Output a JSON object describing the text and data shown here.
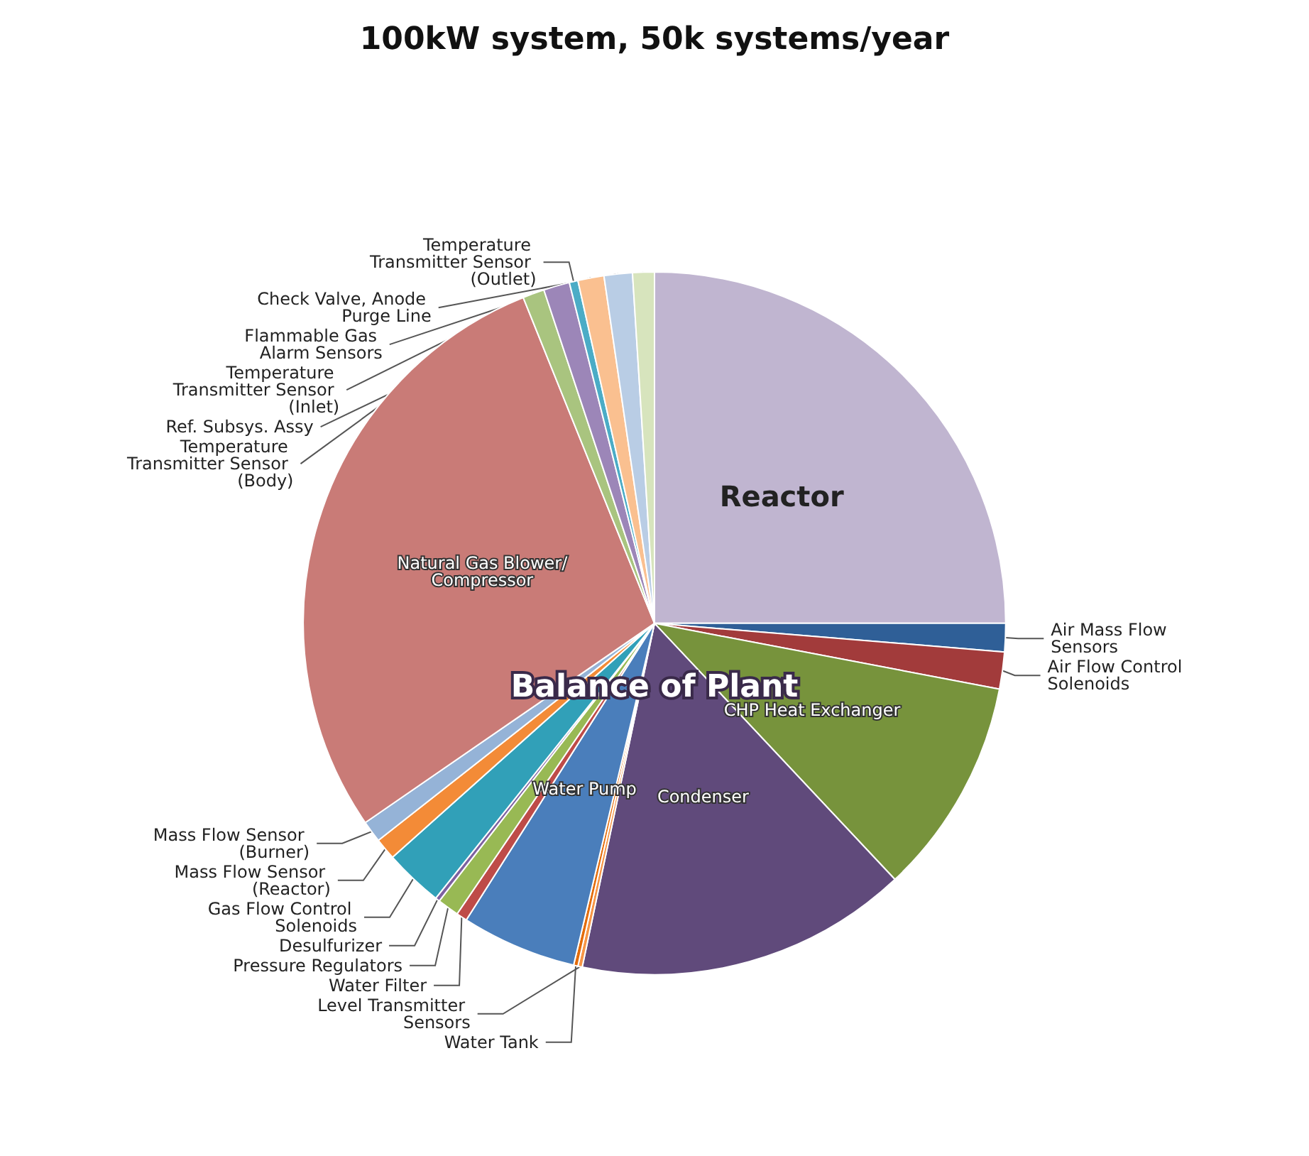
{
  "chart_data": {
    "type": "pie",
    "title": "100kW system, 50k systems/year",
    "categories": [
      "Reactor",
      "Air Mass Flow Sensors",
      "Air Flow Control Solenoids",
      "CHP Heat Exchanger",
      "Condenser",
      "Level Transmitter Sensors",
      "Water Tank",
      "Water Pump",
      "Water Filter",
      "Pressure Regulators",
      "Desulfurizer",
      "Gas Flow Control Solenoids",
      "Mass Flow Sensor (Reactor)",
      "Mass Flow Sensor (Burner)",
      "Natural Gas Blower/Compressor",
      "Temperature Transmitter Sensor (Body)",
      "Temperature Transmitter Sensor (Inlet)",
      "Temperature Transmitter Sensor (Outlet)",
      "Flammable Gas Alarm Sensors",
      "Check Valve, Anode Purge Line",
      "Ref. Subsys. Assy"
    ],
    "values": [
      25,
      1.3,
      1.7,
      10,
      15.3,
      0.2,
      0.2,
      5.3,
      0.5,
      1,
      0.2,
      2.7,
      1,
      1,
      28.5,
      1,
      1.2,
      0.4,
      1.2,
      1.3,
      1
    ],
    "colors": [
      "#c0b5d0",
      "#2f5f97",
      "#a23b3b",
      "#77933c",
      "#604a7b",
      "#f79646",
      "#e46c0a",
      "#4a7ebb",
      "#be4b48",
      "#98b954",
      "#7d60a0",
      "#31a0b8",
      "#f38b37",
      "#95b3d7",
      "#c97b77",
      "#a9c47f",
      "#9c86b8",
      "#4bacc6",
      "#fac090",
      "#b9cde5",
      "#d7e4bd"
    ],
    "annotations": [
      "Balance of Plant"
    ],
    "legend": false
  }
}
